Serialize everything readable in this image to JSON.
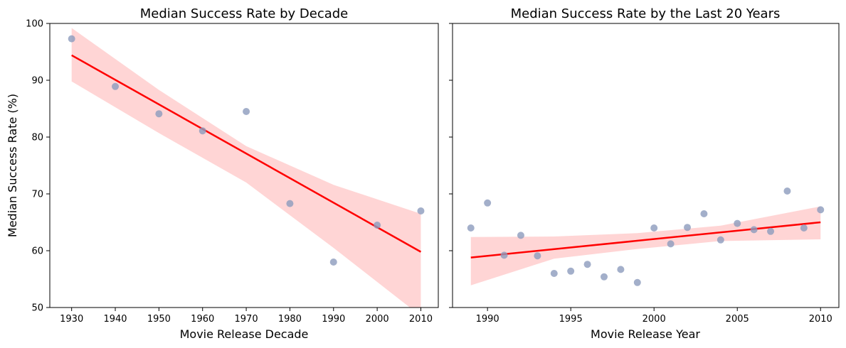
{
  "chart_data": [
    {
      "type": "scatter",
      "title": "Median Success Rate by Decade",
      "xlabel": "Movie Release Decade",
      "ylabel": "Median Success Rate (%)",
      "xlim": [
        1925,
        2014
      ],
      "ylim": [
        50,
        100
      ],
      "xticks": [
        1930,
        1940,
        1950,
        1960,
        1970,
        1980,
        1990,
        2000,
        2010
      ],
      "yticks": [
        50,
        60,
        70,
        80,
        90,
        100
      ],
      "point_color": "#8c9bbd",
      "series": [
        {
          "x": [
            1930,
            1940,
            1950,
            1960,
            1970,
            1980,
            1990,
            2000,
            2010
          ],
          "y": [
            97.3,
            88.9,
            84.1,
            81.1,
            84.5,
            68.3,
            58.0,
            64.5,
            67.0
          ]
        }
      ],
      "regression": {
        "color": "#ff0000",
        "band_color": "#ffb3b3",
        "line": [
          [
            1930,
            94.4
          ],
          [
            2010,
            59.8
          ]
        ],
        "band": {
          "x": [
            1930,
            1950,
            1970,
            1990,
            2010
          ],
          "lower": [
            89.8,
            80.7,
            72.0,
            60.5,
            48.5
          ],
          "upper": [
            99.2,
            88.3,
            78.4,
            71.6,
            66.5
          ]
        }
      }
    },
    {
      "type": "scatter",
      "title": "Median Success Rate by the Last 20 Years",
      "xlabel": "Movie Release Year",
      "ylabel": "",
      "xlim": [
        1987.9,
        2011.1
      ],
      "ylim": [
        50,
        100
      ],
      "xticks": [
        1990,
        1995,
        2000,
        2005,
        2010
      ],
      "yticks": [
        50,
        60,
        70,
        80,
        90,
        100
      ],
      "point_color": "#8c9bbd",
      "series": [
        {
          "x": [
            1989,
            1990,
            1991,
            1992,
            1993,
            1994,
            1995,
            1996,
            1997,
            1998,
            1999,
            2000,
            2001,
            2002,
            2003,
            2004,
            2005,
            2006,
            2007,
            2008,
            2009,
            2010
          ],
          "y": [
            64.0,
            68.4,
            59.2,
            62.7,
            59.1,
            56.0,
            56.4,
            57.6,
            55.4,
            56.7,
            54.4,
            64.0,
            61.2,
            64.1,
            66.5,
            61.9,
            64.8,
            63.7,
            63.4,
            70.5,
            64.0,
            67.2
          ]
        }
      ],
      "regression": {
        "color": "#ff0000",
        "band_color": "#ffb3b3",
        "line": [
          [
            1989,
            58.8
          ],
          [
            2010,
            65.0
          ]
        ],
        "band": {
          "x": [
            1989,
            1994,
            1999,
            2004,
            2010
          ],
          "lower": [
            53.9,
            58.6,
            60.3,
            61.7,
            62.0
          ],
          "upper": [
            62.4,
            62.5,
            63.1,
            64.4,
            67.8
          ]
        }
      }
    }
  ]
}
